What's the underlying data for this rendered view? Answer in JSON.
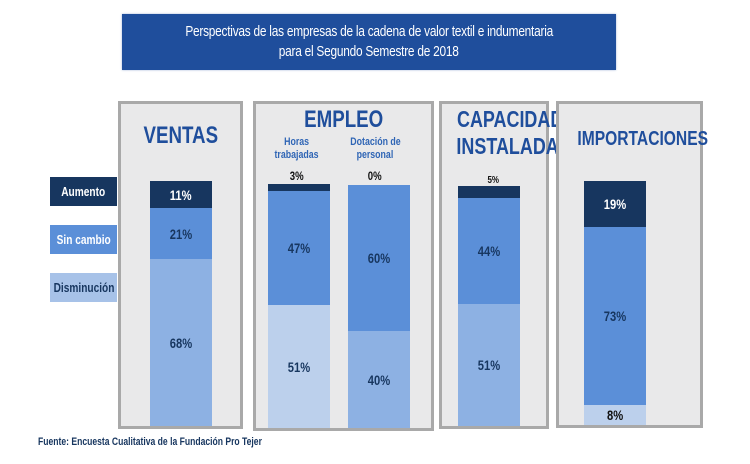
{
  "title": {
    "line1": "Perspectivas de las empresas de la cadena de valor textil e indumentaria",
    "line2": "para el Segundo Semestre de 2018"
  },
  "legend": [
    {
      "label": "Aumento",
      "color": "#17365f"
    },
    {
      "label": "Sin cambio",
      "color": "#5b8fd8"
    },
    {
      "label": "Disminución",
      "color": "#a7c2e8"
    }
  ],
  "source": "Fuente: Encuesta Cualitativa de la Fundación Pro Tejer",
  "chart_data": {
    "type": "bar",
    "stacked": true,
    "title": "Perspectivas de las empresas de la cadena de valor textil e indumentaria para el Segundo Semestre de 2018",
    "unit": "%",
    "series_names": [
      "Aumento",
      "Sin cambio",
      "Disminución"
    ],
    "panels": [
      {
        "title": "VENTAS",
        "bars": [
          {
            "label": "",
            "aumento": 11,
            "sin_cambio": 21,
            "disminucion": 68,
            "labels": {
              "aumento": "11%",
              "sin_cambio": "21%",
              "disminucion": "68%"
            }
          }
        ]
      },
      {
        "title": "EMPLEO",
        "bars": [
          {
            "label_line1": "Horas",
            "label_line2": "trabajadas",
            "aumento": 3,
            "sin_cambio": 47,
            "disminucion": 51,
            "labels": {
              "aumento": "3%",
              "sin_cambio": "47%",
              "disminucion": "51%"
            }
          },
          {
            "label_line1": "Dotación de",
            "label_line2": "personal",
            "aumento": 0,
            "sin_cambio": 60,
            "disminucion": 40,
            "labels": {
              "aumento": "0%",
              "sin_cambio": "60%",
              "disminucion": "40%"
            }
          }
        ]
      },
      {
        "title_line1": "CAPACIDAD",
        "title_line2": "INSTALADA",
        "bars": [
          {
            "label": "",
            "aumento": 5,
            "sin_cambio": 44,
            "disminucion": 51,
            "labels": {
              "aumento": "5%",
              "sin_cambio": "44%",
              "disminucion": "51%"
            }
          }
        ]
      },
      {
        "title": "IMPORTACIONES",
        "bars": [
          {
            "label": "",
            "aumento": 19,
            "sin_cambio": 73,
            "disminucion": 8,
            "labels": {
              "aumento": "19%",
              "sin_cambio": "73%",
              "disminucion": "8%"
            }
          }
        ]
      }
    ],
    "colors": {
      "aumento": "#17365f",
      "sin_cambio": "#5b8fd8",
      "disminucion_ventas": "#8db1e3",
      "disminucion_light": "#bcd0ec"
    }
  }
}
